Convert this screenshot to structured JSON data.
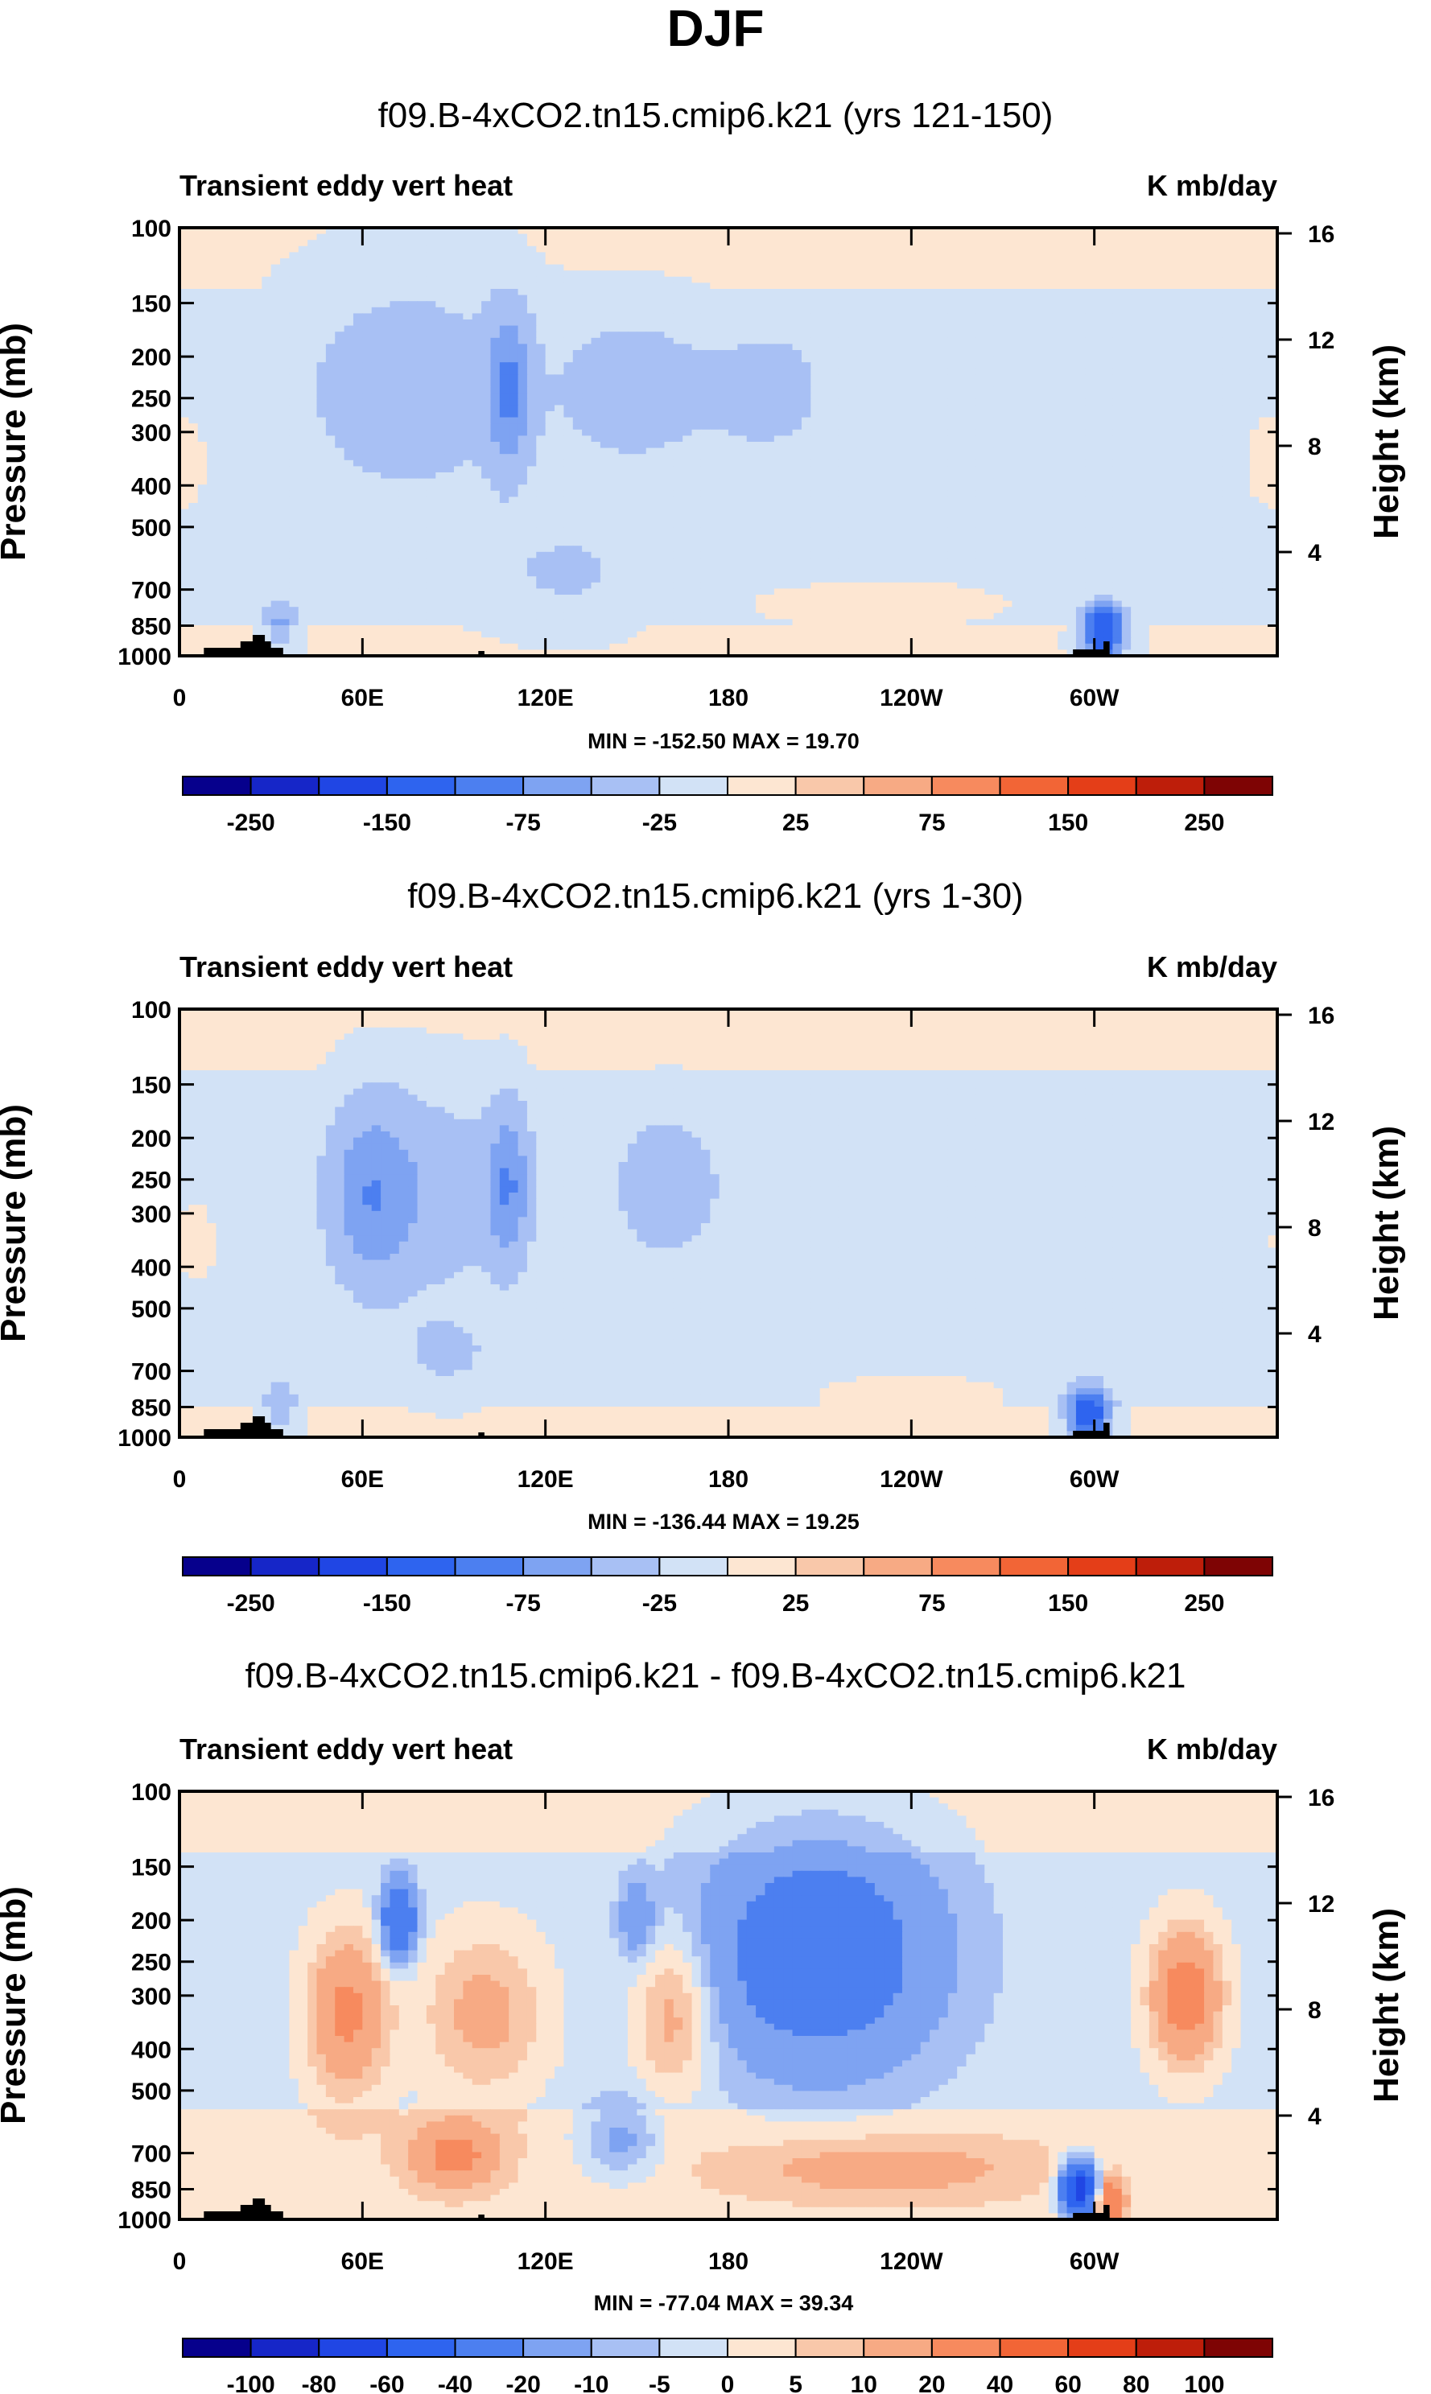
{
  "figure_title": "DJF",
  "colors": {
    "land": "#000000",
    "frame": "#000000",
    "palette": [
      "#06008c",
      "#1626c8",
      "#2046e4",
      "#2e64ef",
      "#4c7ff0",
      "#7ea3f2",
      "#a8c0f4",
      "#d2e2f6",
      "#fde6d2",
      "#f9c8aa",
      "#f7aa84",
      "#f78a5e",
      "#f26536",
      "#e43e18",
      "#be1e0a",
      "#7e0404"
    ]
  },
  "chart_data": [
    {
      "type": "heatmap",
      "title": "f09.B-4xCO2.tn15.cmip6.k21 (yrs 121-150)",
      "left_label": "Transient eddy vert heat",
      "right_label": "K mb/day",
      "ylabel": "Pressure (mb)",
      "ylabel_right": "Height (km)",
      "x_ticks": [
        "0",
        "60E",
        "120E",
        "180",
        "120W",
        "60W"
      ],
      "y_ticks": [
        "100",
        "150",
        "200",
        "250",
        "300",
        "400",
        "500",
        "700",
        "850",
        "1000"
      ],
      "y_ticks_right": [
        "16",
        "12",
        "8",
        "4"
      ],
      "stats": "MIN = -152.50  MAX =  19.70",
      "colorbar_labels": [
        "-250",
        "-150",
        "-75",
        "-25",
        "25",
        "75",
        "150",
        "250"
      ],
      "min": -152.5,
      "max": 19.7,
      "features": [
        {
          "lon": 75,
          "p": 240,
          "value": -30,
          "wlon": 28,
          "wp": 0.45
        },
        {
          "lon": 108,
          "p": 240,
          "value": -60,
          "wlon": 5,
          "wp": 0.3
        },
        {
          "lon": 150,
          "p": 240,
          "value": -30,
          "wlon": 18,
          "wp": 0.3
        },
        {
          "lon": 194,
          "p": 240,
          "value": -28,
          "wlon": 14,
          "wp": 0.25
        },
        {
          "lon": 128,
          "p": 640,
          "value": -20,
          "wlon": 20,
          "wp": 0.2
        },
        {
          "lon": 33,
          "p": 850,
          "value": -50,
          "wlon": 4,
          "wp": 0.1
        },
        {
          "lon": 303,
          "p": 880,
          "value": -152.5,
          "wlon": 5,
          "wp": 0.1
        },
        {
          "lon": 0,
          "p": 350,
          "value": 12,
          "wlon": 12,
          "wp": 0.3
        },
        {
          "lon": 230,
          "p": 760,
          "value": 14,
          "wlon": 40,
          "wp": 0.12
        }
      ]
    },
    {
      "type": "heatmap",
      "title": "f09.B-4xCO2.tn15.cmip6.k21 (yrs 1-30)",
      "left_label": "Transient eddy vert heat",
      "right_label": "K mb/day",
      "ylabel": "Pressure (mb)",
      "ylabel_right": "Height (km)",
      "x_ticks": [
        "0",
        "60E",
        "120E",
        "180",
        "120W",
        "60W"
      ],
      "y_ticks": [
        "100",
        "150",
        "200",
        "250",
        "300",
        "400",
        "500",
        "700",
        "850",
        "1000"
      ],
      "y_ticks_right": [
        "16",
        "12",
        "8",
        "4"
      ],
      "stats": "MIN = -136.44  MAX =  19.25",
      "colorbar_labels": [
        "-250",
        "-150",
        "-75",
        "-25",
        "25",
        "75",
        "150",
        "250"
      ],
      "min": -136.44,
      "max": 19.25,
      "features": [
        {
          "lon": 62,
          "p": 270,
          "value": -55,
          "wlon": 10,
          "wp": 0.35
        },
        {
          "lon": 85,
          "p": 270,
          "value": -30,
          "wlon": 18,
          "wp": 0.4
        },
        {
          "lon": 108,
          "p": 260,
          "value": -58,
          "wlon": 5,
          "wp": 0.3
        },
        {
          "lon": 160,
          "p": 260,
          "value": -32,
          "wlon": 14,
          "wp": 0.3
        },
        {
          "lon": 88,
          "p": 640,
          "value": -20,
          "wlon": 12,
          "wp": 0.15
        },
        {
          "lon": 33,
          "p": 860,
          "value": -45,
          "wlon": 4,
          "wp": 0.1
        },
        {
          "lon": 298,
          "p": 880,
          "value": -136.44,
          "wlon": 5,
          "wp": 0.1
        },
        {
          "lon": 5,
          "p": 350,
          "value": 10,
          "wlon": 10,
          "wp": 0.3
        },
        {
          "lon": 240,
          "p": 800,
          "value": 12,
          "wlon": 35,
          "wp": 0.12
        }
      ]
    },
    {
      "type": "heatmap",
      "title": "f09.B-4xCO2.tn15.cmip6.k21 - f09.B-4xCO2.tn15.cmip6.k21",
      "left_label": "Transient eddy vert heat",
      "right_label": "K mb/day",
      "ylabel": "Pressure (mb)",
      "ylabel_right": "Height (km)",
      "x_ticks": [
        "0",
        "60E",
        "120E",
        "180",
        "120W",
        "60W"
      ],
      "y_ticks": [
        "100",
        "150",
        "200",
        "250",
        "300",
        "400",
        "500",
        "700",
        "850",
        "1000"
      ],
      "y_ticks_right": [
        "16",
        "12",
        "8",
        "4"
      ],
      "stats": "MIN = -77.04  MAX = 39.34",
      "colorbar_labels": [
        "-100",
        "-80",
        "-60",
        "-40",
        "-20",
        "-10",
        "-5",
        "0",
        "5",
        "10",
        "20",
        "40",
        "60",
        "80",
        "100"
      ],
      "min": -77.04,
      "max": 39.34,
      "features": [
        {
          "lon": 210,
          "p": 240,
          "value": -30,
          "wlon": 28,
          "wp": 0.45
        },
        {
          "lon": 72,
          "p": 200,
          "value": -40,
          "wlon": 4,
          "wp": 0.15
        },
        {
          "lon": 150,
          "p": 200,
          "value": -15,
          "wlon": 4,
          "wp": 0.15
        },
        {
          "lon": 145,
          "p": 650,
          "value": -15,
          "wlon": 10,
          "wp": 0.15
        },
        {
          "lon": 295,
          "p": 850,
          "value": -77.04,
          "wlon": 4,
          "wp": 0.1
        },
        {
          "lon": 55,
          "p": 330,
          "value": 25,
          "wlon": 9,
          "wp": 0.3
        },
        {
          "lon": 100,
          "p": 330,
          "value": 15,
          "wlon": 14,
          "wp": 0.3
        },
        {
          "lon": 162,
          "p": 330,
          "value": 18,
          "wlon": 9,
          "wp": 0.3
        },
        {
          "lon": 330,
          "p": 300,
          "value": 30,
          "wlon": 8,
          "wp": 0.25
        },
        {
          "lon": 90,
          "p": 710,
          "value": 22,
          "wlon": 10,
          "wp": 0.12
        },
        {
          "lon": 230,
          "p": 760,
          "value": 12,
          "wlon": 35,
          "wp": 0.12
        },
        {
          "lon": 305,
          "p": 910,
          "value": 39.34,
          "wlon": 3,
          "wp": 0.08
        }
      ]
    }
  ]
}
